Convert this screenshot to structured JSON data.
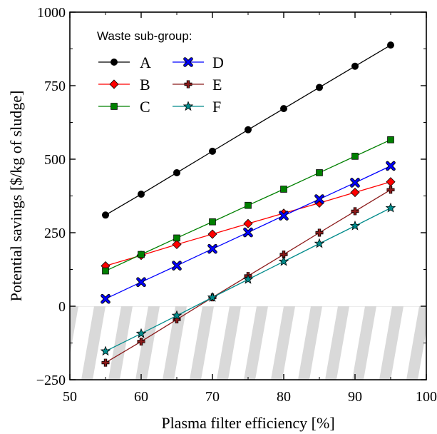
{
  "chart_data": {
    "type": "line",
    "xlabel": "Plasma filter efficiency [%]",
    "ylabel": "Potential savings [$/kg of sludge]",
    "xlim": [
      50,
      100
    ],
    "ylim": [
      -250,
      1000
    ],
    "x_ticks": [
      "50",
      "60",
      "70",
      "80",
      "90",
      "100"
    ],
    "y_ticks": [
      "−250",
      "0",
      "250",
      "500",
      "750",
      "1000"
    ],
    "x_tick_values": [
      50,
      60,
      70,
      80,
      90,
      100
    ],
    "y_tick_values": [
      -250,
      0,
      250,
      500,
      750,
      1000
    ],
    "grid": false,
    "negative_region": "hatched",
    "legend": {
      "title": "Waste sub-group:",
      "placement": "top-left",
      "columns": 2
    },
    "x": [
      55,
      60,
      65,
      70,
      75,
      80,
      85,
      90,
      95
    ],
    "series": [
      {
        "name": "A",
        "color": "#000000",
        "fill": "#000000",
        "marker": "circle",
        "values": [
          310,
          381,
          454,
          527,
          600,
          672,
          744,
          816,
          888
        ]
      },
      {
        "name": "B",
        "color": "#ff0000",
        "fill": "#ff0000",
        "marker": "diamond",
        "values": [
          137,
          173,
          210,
          245,
          281,
          316,
          351,
          387,
          423
        ]
      },
      {
        "name": "C",
        "color": "#008000",
        "fill": "#008000",
        "marker": "square",
        "values": [
          120,
          176,
          232,
          287,
          343,
          398,
          454,
          510,
          566
        ]
      },
      {
        "name": "D",
        "color": "#0000ff",
        "fill": "#0000ff",
        "marker": "x",
        "values": [
          25,
          82,
          138,
          195,
          251,
          308,
          364,
          420,
          477
        ]
      },
      {
        "name": "E",
        "color": "#8b1a1a",
        "fill": "#8b1a1a",
        "marker": "plus",
        "values": [
          -192,
          -120,
          -45,
          30,
          103,
          176,
          250,
          323,
          396
        ]
      },
      {
        "name": "F",
        "color": "#008b8b",
        "fill": "#008b8b",
        "marker": "star",
        "values": [
          -153,
          -93,
          -32,
          30,
          91,
          152,
          213,
          273,
          334
        ]
      }
    ]
  }
}
